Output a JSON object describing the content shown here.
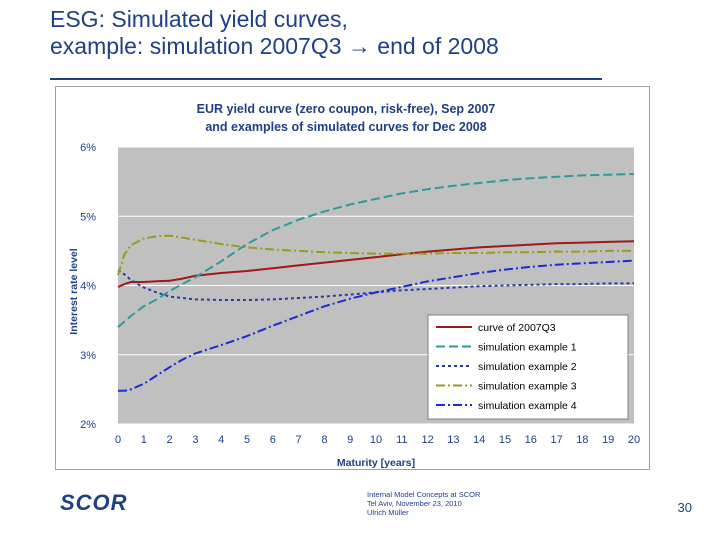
{
  "slide": {
    "title_line1": "ESG: Simulated yield curves,",
    "title_line2": "example: simulation 2007Q3 → end of 2008"
  },
  "footer": {
    "line1": "Internal Model Concepts at SCOR",
    "line2": "Tel Aviv, November 23, 2010",
    "line3": "Ulrich Müller",
    "page_number": "30",
    "logo_text": "SCOR"
  },
  "colors": {
    "title": "#1f3f86",
    "plot_background": "#c0c0c0",
    "curve_2007Q3": "#a01818",
    "simulation_1": "#2e9a9a",
    "simulation_2": "#2838b0",
    "simulation_3": "#9a9a20",
    "simulation_4": "#1a2cd0"
  },
  "chart_data": {
    "type": "line",
    "title_line1": "EUR yield curve (zero coupon, risk-free), Sep 2007",
    "title_line2": "and examples of simulated curves for Dec 2008",
    "xlabel": "Maturity [years]",
    "ylabel": "Interest rate level",
    "xlim": [
      0,
      20
    ],
    "ylim": [
      2,
      6
    ],
    "x_ticks": [
      0,
      1,
      2,
      3,
      4,
      5,
      6,
      7,
      8,
      9,
      10,
      11,
      12,
      13,
      14,
      15,
      16,
      17,
      18,
      19,
      20
    ],
    "y_ticks": [
      2,
      3,
      4,
      5,
      6
    ],
    "y_tick_labels": [
      "2%",
      "3%",
      "4%",
      "5%",
      "6%"
    ],
    "grid": true,
    "legend_position": "bottom-right",
    "x": [
      0,
      0.25,
      0.5,
      1,
      1.5,
      2,
      2.5,
      3,
      4,
      5,
      6,
      7,
      8,
      9,
      10,
      11,
      12,
      13,
      14,
      15,
      16,
      17,
      18,
      19,
      20
    ],
    "series": [
      {
        "name": "curve of 2007Q3",
        "style": "solid",
        "color": "#a01818",
        "values": [
          3.98,
          4.02,
          4.05,
          4.05,
          4.06,
          4.07,
          4.1,
          4.14,
          4.18,
          4.21,
          4.25,
          4.29,
          4.33,
          4.37,
          4.41,
          4.45,
          4.49,
          4.52,
          4.55,
          4.57,
          4.59,
          4.61,
          4.62,
          4.63,
          4.64
        ]
      },
      {
        "name": "simulation example 1",
        "style": "dash",
        "color": "#2e9a9a",
        "values": [
          3.4,
          3.48,
          3.56,
          3.7,
          3.8,
          3.92,
          4.02,
          4.12,
          4.35,
          4.6,
          4.8,
          4.95,
          5.07,
          5.17,
          5.25,
          5.33,
          5.39,
          5.44,
          5.48,
          5.52,
          5.55,
          5.57,
          5.59,
          5.6,
          5.61
        ]
      },
      {
        "name": "simulation example 2",
        "style": "dot",
        "color": "#2838b0",
        "values": [
          4.22,
          4.16,
          4.08,
          3.97,
          3.9,
          3.84,
          3.82,
          3.8,
          3.79,
          3.79,
          3.8,
          3.82,
          3.84,
          3.87,
          3.9,
          3.93,
          3.95,
          3.97,
          3.99,
          4.0,
          4.01,
          4.02,
          4.02,
          4.03,
          4.03
        ]
      },
      {
        "name": "simulation example 3",
        "style": "dash-dot",
        "color": "#9a9a20",
        "values": [
          4.15,
          4.45,
          4.58,
          4.68,
          4.71,
          4.72,
          4.69,
          4.66,
          4.6,
          4.55,
          4.52,
          4.5,
          4.48,
          4.47,
          4.46,
          4.46,
          4.46,
          4.47,
          4.47,
          4.48,
          4.48,
          4.49,
          4.49,
          4.5,
          4.5
        ]
      },
      {
        "name": "simulation example 4",
        "style": "dash-dot",
        "color": "#1a2cd0",
        "values": [
          2.48,
          2.48,
          2.5,
          2.58,
          2.7,
          2.82,
          2.93,
          3.02,
          3.14,
          3.27,
          3.42,
          3.56,
          3.7,
          3.81,
          3.9,
          3.98,
          4.06,
          4.12,
          4.18,
          4.23,
          4.27,
          4.3,
          4.32,
          4.34,
          4.36
        ]
      }
    ]
  }
}
